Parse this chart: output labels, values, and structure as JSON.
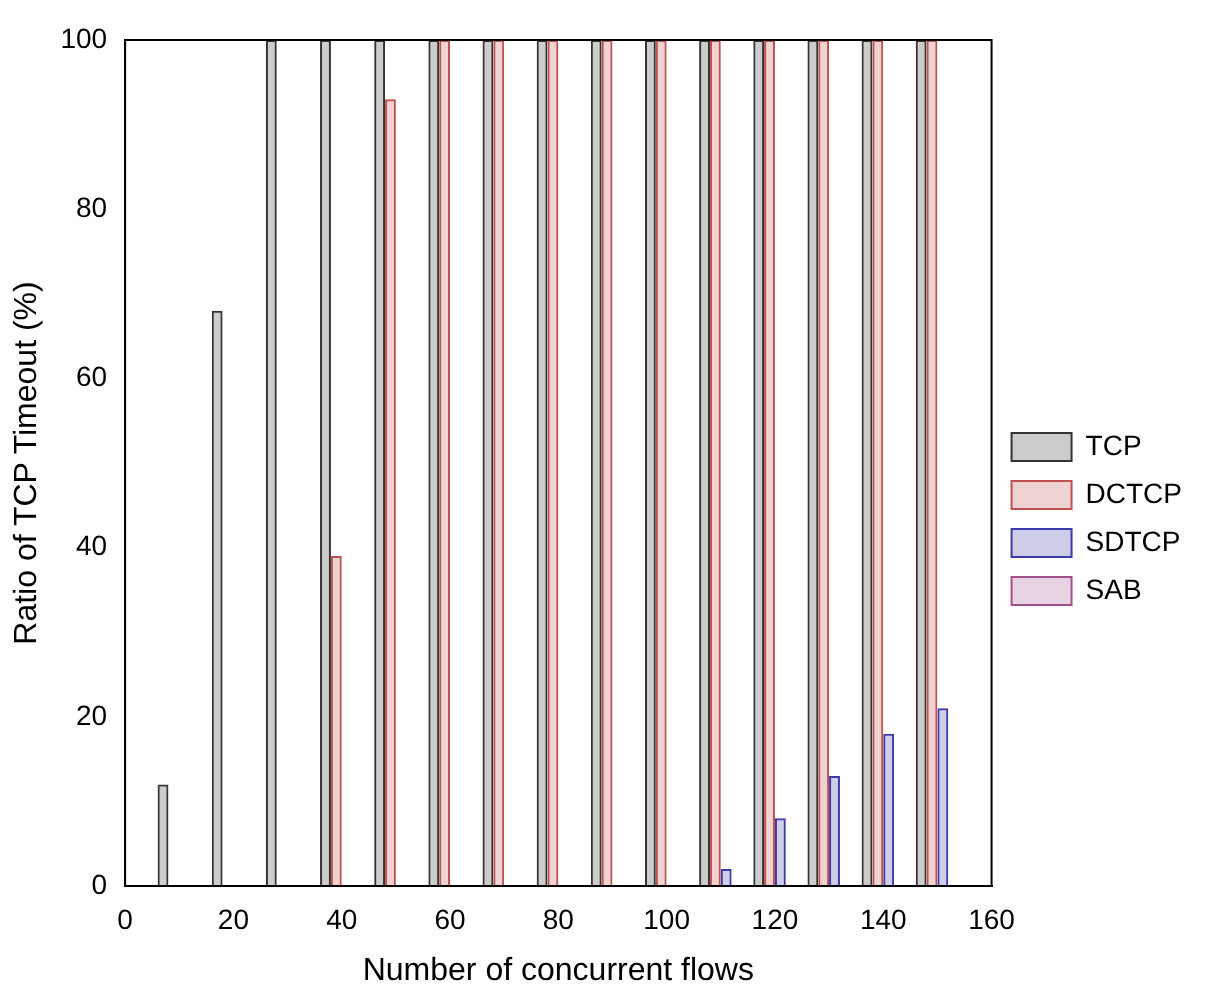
{
  "chart_data": {
    "type": "bar",
    "xlabel": "Number of concurrent flows",
    "ylabel": "Ratio of TCP Timeout (%)",
    "x": [
      10,
      20,
      30,
      40,
      50,
      60,
      70,
      80,
      90,
      100,
      110,
      120,
      130,
      140,
      150
    ],
    "series": [
      {
        "name": "TCP",
        "color": "#333333",
        "values": [
          12,
          68,
          100,
          100,
          100,
          100,
          100,
          100,
          100,
          100,
          100,
          100,
          100,
          100,
          100
        ]
      },
      {
        "name": "DCTCP",
        "color": "#c0504d",
        "values": [
          0,
          0,
          0,
          39,
          93,
          100,
          100,
          100,
          100,
          100,
          100,
          100,
          100,
          100,
          100
        ]
      },
      {
        "name": "SDTCP",
        "color": "#3a3aa8",
        "values": [
          0,
          0,
          0,
          0,
          0,
          0,
          0,
          0,
          0,
          0,
          2,
          8,
          13,
          18,
          21
        ]
      },
      {
        "name": "SAB",
        "color": "#a0508a",
        "values": [
          0,
          0,
          0,
          0,
          0,
          0,
          0,
          0,
          0,
          0,
          0,
          0,
          0,
          0,
          0
        ]
      }
    ],
    "xlim": [
      0,
      160
    ],
    "xticks": [
      0,
      20,
      40,
      60,
      80,
      100,
      120,
      140,
      160
    ],
    "ylim": [
      0,
      100
    ],
    "yticks": [
      0,
      20,
      40,
      60,
      80,
      100
    ],
    "grid": false,
    "legend": "right"
  }
}
